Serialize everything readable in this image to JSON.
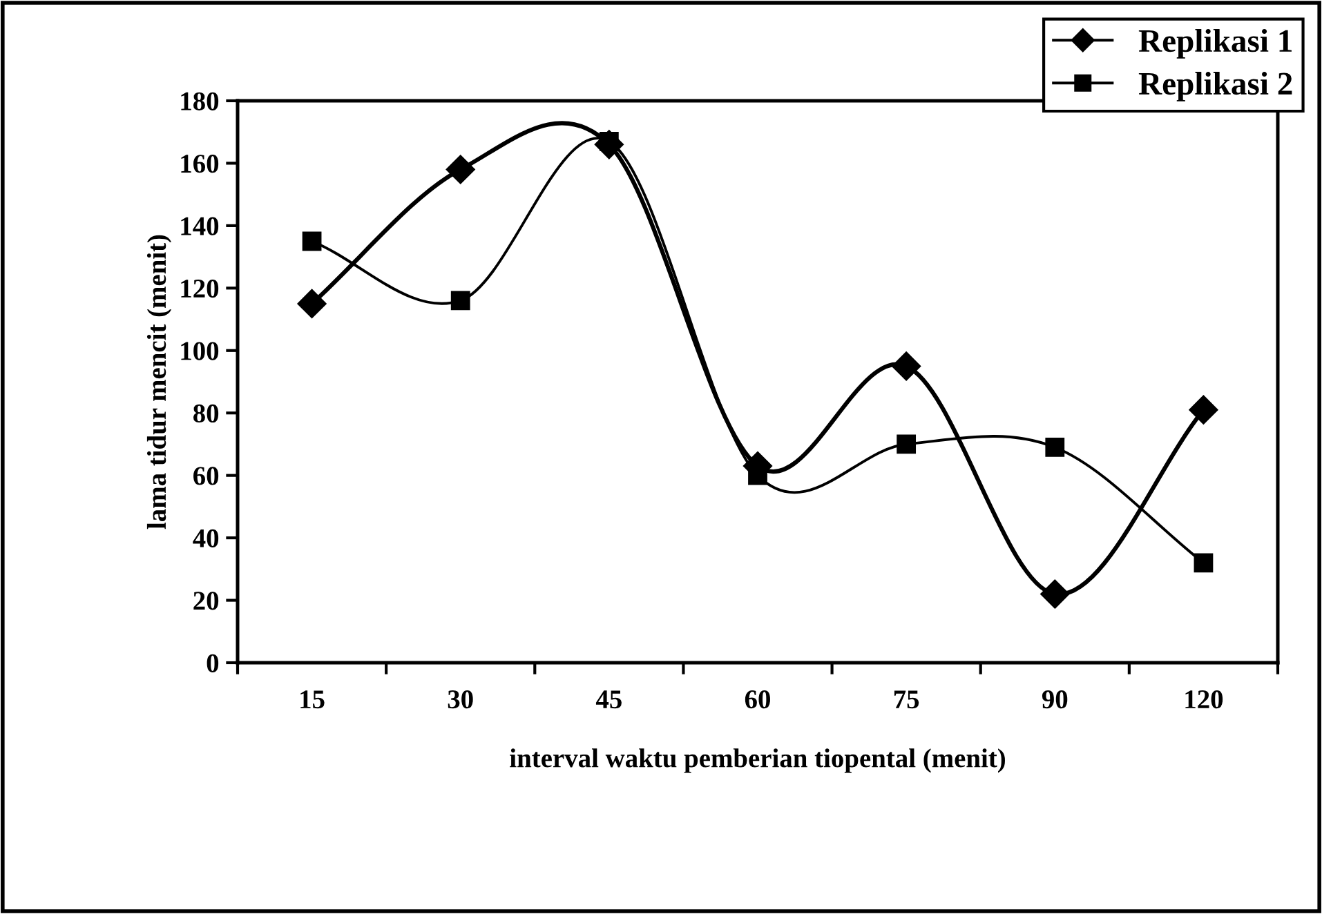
{
  "chart_data": {
    "type": "line",
    "xlabel": "interval waktu pemberian tiopental (menit)",
    "ylabel": "lama tidur mencit (menit)",
    "categories": [
      "15",
      "30",
      "45",
      "60",
      "75",
      "90",
      "120"
    ],
    "series": [
      {
        "name": "Replikasi 1",
        "color": "#000000",
        "marker": "diamond",
        "values": [
          115,
          158,
          166,
          63,
          95,
          22,
          81
        ]
      },
      {
        "name": "Replikasi 2",
        "color": "#000000",
        "marker": "square",
        "values": [
          135,
          116,
          167,
          60,
          70,
          69,
          32
        ]
      }
    ],
    "ylim": [
      0,
      180
    ],
    "yticks": [
      0,
      20,
      40,
      60,
      80,
      100,
      120,
      140,
      160,
      180
    ],
    "grid": false,
    "legend": "top right",
    "line_style": "solid"
  }
}
